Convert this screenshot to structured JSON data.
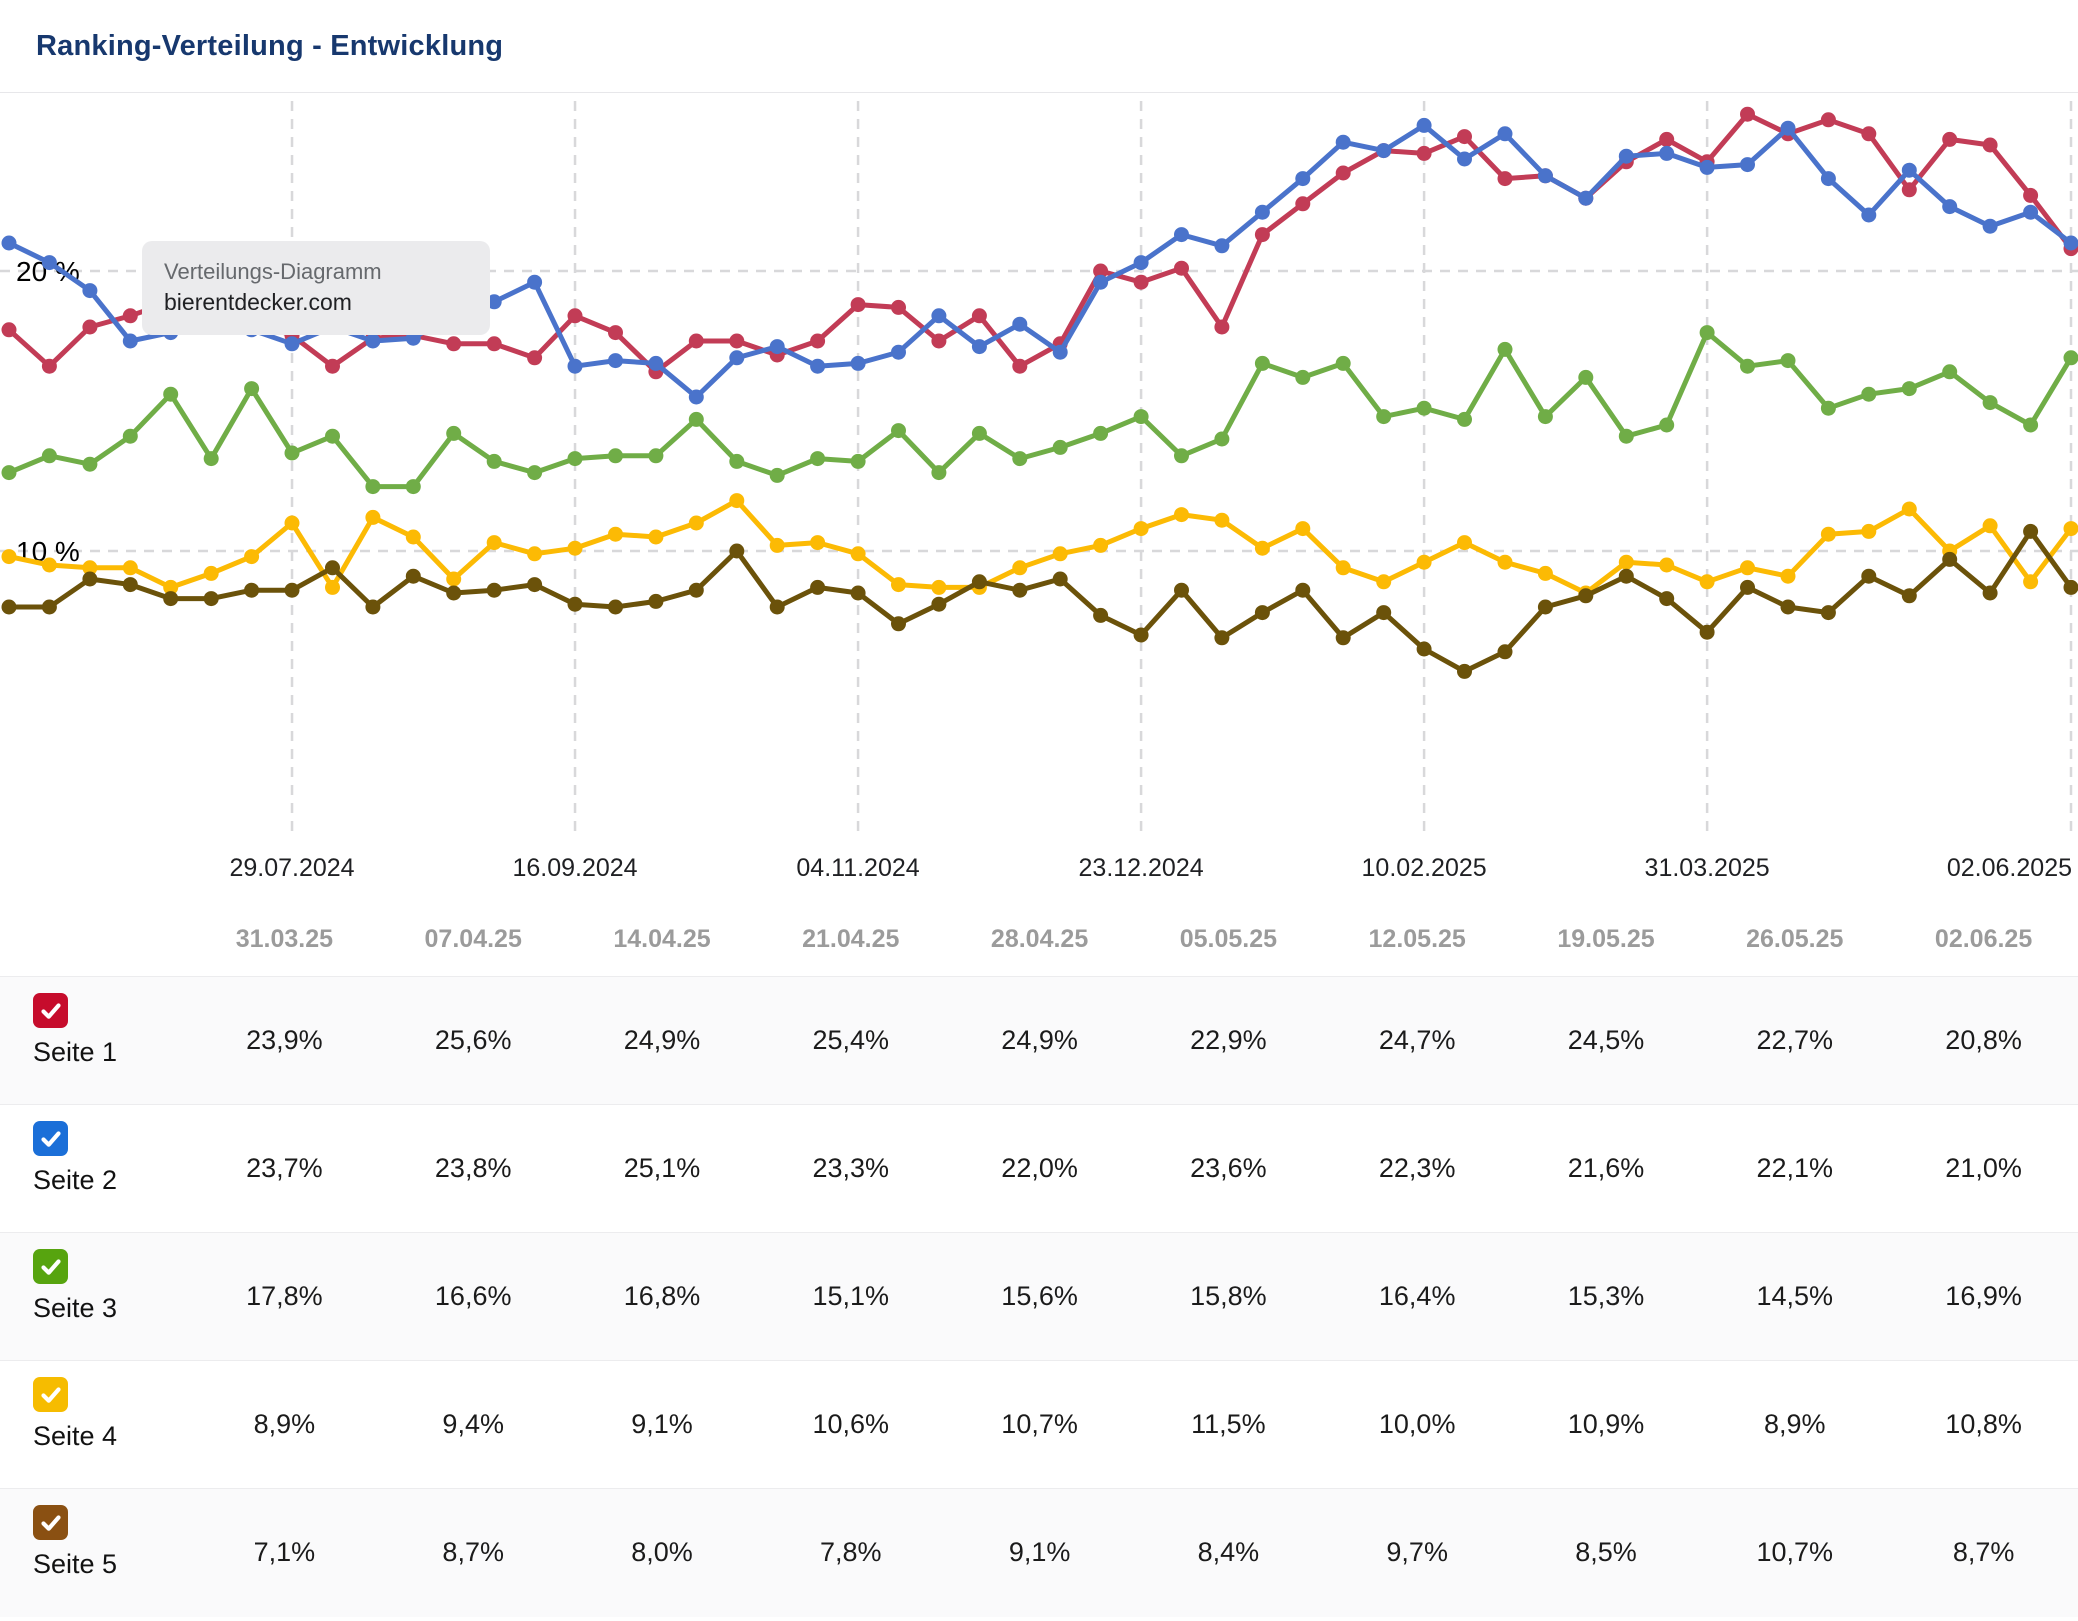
{
  "header": {
    "title": "Ranking-Verteilung - Entwicklung"
  },
  "tooltip": {
    "title": "Verteilungs-Diagramm",
    "domain": "bierentdecker.com"
  },
  "chart_data": {
    "type": "line",
    "title": "Ranking-Verteilung - Entwicklung",
    "ylabel": "",
    "xlabel": "",
    "ylim": [
      0,
      26.4
    ],
    "grid": "dashed",
    "y_axis_labels": [
      {
        "text": "20 %",
        "value": 20
      },
      {
        "text": "10 %",
        "value": 10
      }
    ],
    "x_ticks": [
      {
        "label": "29.07.2024",
        "point_index": 7
      },
      {
        "label": "16.09.2024",
        "point_index": 14
      },
      {
        "label": "04.11.2024",
        "point_index": 21
      },
      {
        "label": "23.12.2024",
        "point_index": 28
      },
      {
        "label": "10.02.2025",
        "point_index": 35
      },
      {
        "label": "31.03.2025",
        "point_index": 42
      },
      {
        "label": "02.06.2025",
        "point_index": 51
      }
    ],
    "points_per_series": 52,
    "series": [
      {
        "name": "Seite 1",
        "color": "#c23c56",
        "values": [
          17.9,
          16.6,
          18.0,
          18.4,
          18.9,
          18.3,
          18.2,
          17.7,
          16.6,
          17.6,
          17.7,
          17.4,
          17.4,
          16.9,
          18.4,
          17.8,
          16.4,
          17.5,
          17.5,
          17.0,
          17.5,
          18.8,
          18.7,
          17.5,
          18.4,
          16.6,
          17.4,
          20.0,
          19.6,
          20.1,
          18.0,
          21.3,
          22.4,
          23.5,
          24.3,
          24.2,
          24.8,
          23.3,
          23.4,
          22.6,
          23.9,
          24.7,
          23.9,
          25.6,
          24.9,
          25.4,
          24.9,
          22.9,
          24.7,
          24.5,
          22.7,
          20.8
        ]
      },
      {
        "name": "Seite 2",
        "color": "#4a73cb",
        "values": [
          21.0,
          20.3,
          19.3,
          17.5,
          17.8,
          19.2,
          17.9,
          17.4,
          18.0,
          17.5,
          17.6,
          18.5,
          18.9,
          19.6,
          16.6,
          16.8,
          16.7,
          15.5,
          16.9,
          17.3,
          16.6,
          16.7,
          17.1,
          18.4,
          17.3,
          18.1,
          17.1,
          19.6,
          20.3,
          21.3,
          20.9,
          22.1,
          23.3,
          24.6,
          24.3,
          25.2,
          24.0,
          24.9,
          23.4,
          22.6,
          24.1,
          24.2,
          23.7,
          23.8,
          25.1,
          23.3,
          22.0,
          23.6,
          22.3,
          21.6,
          22.1,
          21.0
        ]
      },
      {
        "name": "Seite 3",
        "color": "#70ad47",
        "values": [
          12.8,
          13.4,
          13.1,
          14.1,
          15.6,
          13.3,
          15.8,
          13.5,
          14.1,
          12.3,
          12.3,
          14.2,
          13.2,
          12.8,
          13.3,
          13.4,
          13.4,
          14.7,
          13.2,
          12.7,
          13.3,
          13.2,
          14.3,
          12.8,
          14.2,
          13.3,
          13.7,
          14.2,
          14.8,
          13.4,
          14.0,
          16.7,
          16.2,
          16.7,
          14.8,
          15.1,
          14.7,
          17.2,
          14.8,
          16.2,
          14.1,
          14.5,
          17.8,
          16.6,
          16.8,
          15.1,
          15.6,
          15.8,
          16.4,
          15.3,
          14.5,
          16.9
        ]
      },
      {
        "name": "Seite 4",
        "color": "#fcba04",
        "values": [
          9.8,
          9.5,
          9.4,
          9.4,
          8.7,
          9.2,
          9.8,
          11.0,
          8.7,
          11.2,
          10.5,
          9.0,
          10.3,
          9.9,
          10.1,
          10.6,
          10.5,
          11.0,
          11.8,
          10.2,
          10.3,
          9.9,
          8.8,
          8.7,
          8.7,
          9.4,
          9.9,
          10.2,
          10.8,
          11.3,
          11.1,
          10.1,
          10.8,
          9.4,
          8.9,
          9.6,
          10.3,
          9.6,
          9.2,
          8.5,
          9.6,
          9.5,
          8.9,
          9.4,
          9.1,
          10.6,
          10.7,
          11.5,
          10.0,
          10.9,
          8.9,
          10.8
        ]
      },
      {
        "name": "Seite 5",
        "color": "#6b520a",
        "values": [
          8.0,
          8.0,
          9.0,
          8.8,
          8.3,
          8.3,
          8.6,
          8.6,
          9.4,
          8.0,
          9.1,
          8.5,
          8.6,
          8.8,
          8.1,
          8.0,
          8.2,
          8.6,
          10.0,
          8.0,
          8.7,
          8.5,
          7.4,
          8.1,
          8.9,
          8.6,
          9.0,
          7.7,
          7.0,
          8.6,
          6.9,
          7.8,
          8.6,
          6.9,
          7.8,
          6.5,
          5.7,
          6.4,
          8.0,
          8.4,
          9.1,
          8.3,
          7.1,
          8.7,
          8.0,
          7.8,
          9.1,
          8.4,
          9.7,
          8.5,
          10.7,
          8.7
        ]
      }
    ],
    "legend_position": "table-below"
  },
  "table": {
    "columns": [
      "31.03.25",
      "07.04.25",
      "14.04.25",
      "21.04.25",
      "28.04.25",
      "05.05.25",
      "12.05.25",
      "19.05.25",
      "26.05.25",
      "02.06.25"
    ],
    "rows": [
      {
        "label": "Seite 1",
        "checkbox_color": "#c60c2c",
        "checked": true,
        "values": [
          "23,9%",
          "25,6%",
          "24,9%",
          "25,4%",
          "24,9%",
          "22,9%",
          "24,7%",
          "24,5%",
          "22,7%",
          "20,8%"
        ]
      },
      {
        "label": "Seite 2",
        "checkbox_color": "#1b6fd8",
        "checked": true,
        "values": [
          "23,7%",
          "23,8%",
          "25,1%",
          "23,3%",
          "22,0%",
          "23,6%",
          "22,3%",
          "21,6%",
          "22,1%",
          "21,0%"
        ]
      },
      {
        "label": "Seite 3",
        "checkbox_color": "#57a40f",
        "checked": true,
        "values": [
          "17,8%",
          "16,6%",
          "16,8%",
          "15,1%",
          "15,6%",
          "15,8%",
          "16,4%",
          "15,3%",
          "14,5%",
          "16,9%"
        ]
      },
      {
        "label": "Seite 4",
        "checkbox_color": "#f6bc00",
        "checked": true,
        "values": [
          "8,9%",
          "9,4%",
          "9,1%",
          "10,6%",
          "10,7%",
          "11,5%",
          "10,0%",
          "10,9%",
          "8,9%",
          "10,8%"
        ]
      },
      {
        "label": "Seite 5",
        "checkbox_color": "#8a5012",
        "checked": true,
        "values": [
          "7,1%",
          "8,7%",
          "8,0%",
          "7,8%",
          "9,1%",
          "8,4%",
          "9,7%",
          "8,5%",
          "10,7%",
          "8,7%"
        ]
      }
    ]
  },
  "colors": {
    "title_text": "#17386e",
    "gridline": "#d8d8da",
    "axis_text": "#1f2023",
    "table_header_text": "#9b9b9b",
    "row_alt_background": "#fafafb",
    "separator": "#ececee"
  }
}
